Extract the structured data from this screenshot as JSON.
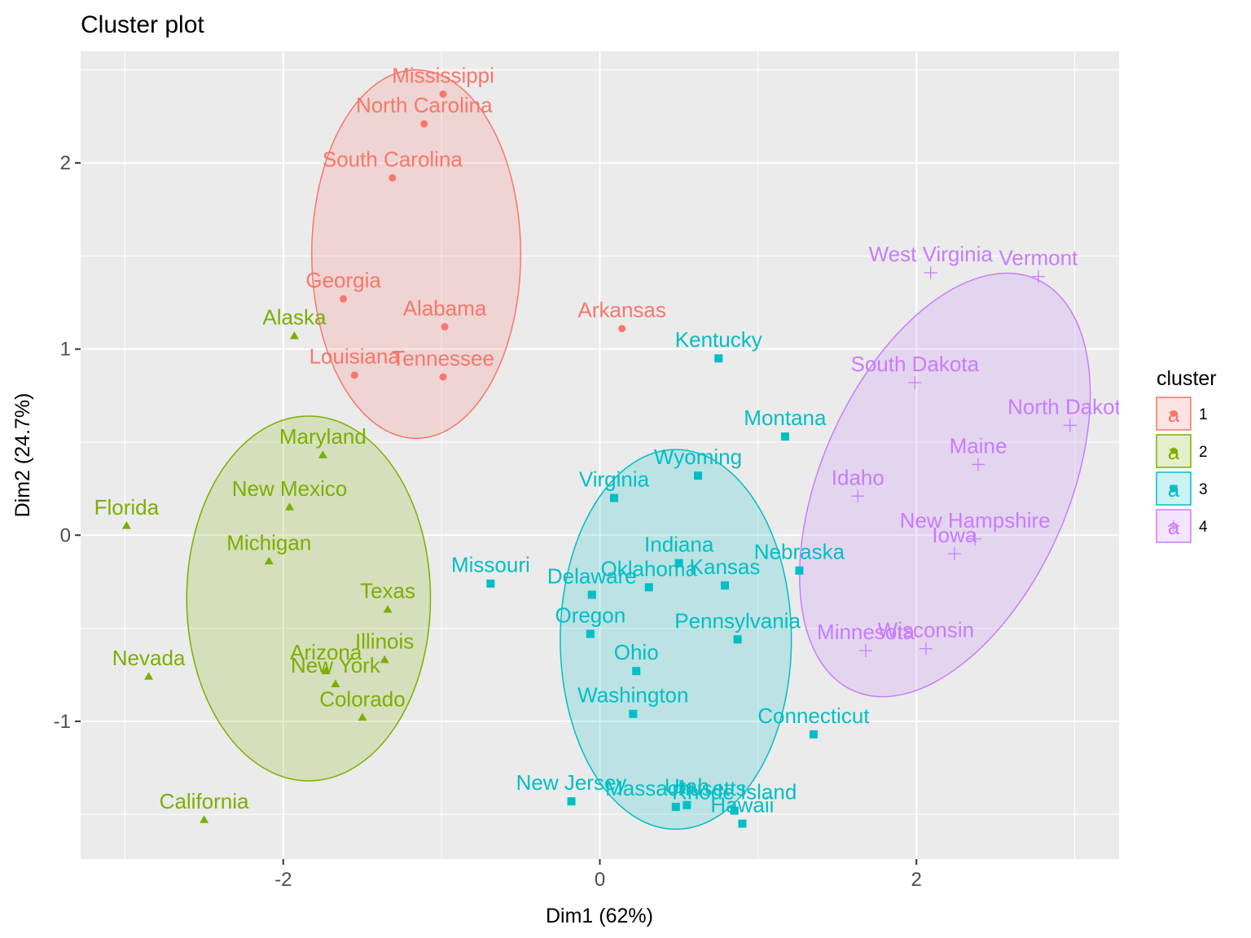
{
  "chart_data": {
    "type": "scatter",
    "title": "Cluster plot",
    "xlabel": "Dim1 (62%)",
    "ylabel": "Dim2 (24.7%)",
    "xlim": [
      -3.28,
      3.28
    ],
    "ylim": [
      -1.74,
      2.6
    ],
    "x_ticks": [
      -2,
      0,
      2
    ],
    "x_tick_labels": [
      "-2",
      "0",
      "2"
    ],
    "y_ticks": [
      -1,
      0,
      1,
      2
    ],
    "y_tick_labels": [
      "-1",
      "0",
      "1",
      "2"
    ],
    "grid": true,
    "legend": {
      "title": "cluster",
      "placement": "right",
      "glyph_text": "a",
      "entries": [
        {
          "label": "1",
          "color": "#F8766D",
          "shape": "circle"
        },
        {
          "label": "2",
          "color": "#7CAE00",
          "shape": "triangle"
        },
        {
          "label": "3",
          "color": "#00BFC4",
          "shape": "square"
        },
        {
          "label": "4",
          "color": "#C77CFF",
          "shape": "cross"
        }
      ]
    },
    "colors": {
      "1": "#F8766D",
      "2": "#7CAE00",
      "3": "#00BFC4",
      "4": "#C77CFF",
      "panel_background": "#EBEBEB",
      "grid": "#FFFFFF"
    },
    "ellipses": [
      {
        "cluster": "1",
        "center": [
          -1.16,
          1.51
        ],
        "semi_axis_x": 0.66,
        "semi_axis_y": 0.99
      },
      {
        "cluster": "2",
        "center": [
          -1.84,
          -0.34
        ],
        "semi_axis_x": 0.77,
        "semi_axis_y": 0.98
      },
      {
        "cluster": "3",
        "center": [
          0.48,
          -0.56
        ],
        "semi_axis_x": 0.73,
        "semi_axis_y": 1.02
      },
      {
        "cluster": "4",
        "center": [
          2.18,
          0.27
        ],
        "semi_axis_x": 0.78,
        "semi_axis_y": 1.21,
        "rotation_deg": 24
      }
    ],
    "points": [
      {
        "name": "Mississippi",
        "cluster": "1",
        "x": -0.99,
        "y": 2.37
      },
      {
        "name": "North Carolina",
        "cluster": "1",
        "x": -1.11,
        "y": 2.21
      },
      {
        "name": "South Carolina",
        "cluster": "1",
        "x": -1.31,
        "y": 1.92
      },
      {
        "name": "Georgia",
        "cluster": "1",
        "x": -1.62,
        "y": 1.27
      },
      {
        "name": "Alabama",
        "cluster": "1",
        "x": -0.98,
        "y": 1.12
      },
      {
        "name": "Arkansas",
        "cluster": "1",
        "x": 0.14,
        "y": 1.11
      },
      {
        "name": "Louisiana",
        "cluster": "1",
        "x": -1.55,
        "y": 0.86
      },
      {
        "name": "Tennessee",
        "cluster": "1",
        "x": -0.99,
        "y": 0.85
      },
      {
        "name": "Alaska",
        "cluster": "2",
        "x": -1.93,
        "y": 1.07
      },
      {
        "name": "Maryland",
        "cluster": "2",
        "x": -1.75,
        "y": 0.43
      },
      {
        "name": "New Mexico",
        "cluster": "2",
        "x": -1.96,
        "y": 0.15
      },
      {
        "name": "Florida",
        "cluster": "2",
        "x": -2.99,
        "y": 0.05
      },
      {
        "name": "Michigan",
        "cluster": "2",
        "x": -2.09,
        "y": -0.14
      },
      {
        "name": "Texas",
        "cluster": "2",
        "x": -1.34,
        "y": -0.4
      },
      {
        "name": "Illinois",
        "cluster": "2",
        "x": -1.36,
        "y": -0.67
      },
      {
        "name": "Arizona",
        "cluster": "2",
        "x": -1.73,
        "y": -0.73
      },
      {
        "name": "New York",
        "cluster": "2",
        "x": -1.67,
        "y": -0.8
      },
      {
        "name": "Nevada",
        "cluster": "2",
        "x": -2.85,
        "y": -0.76
      },
      {
        "name": "Colorado",
        "cluster": "2",
        "x": -1.5,
        "y": -0.98
      },
      {
        "name": "California",
        "cluster": "2",
        "x": -2.5,
        "y": -1.53
      },
      {
        "name": "Kentucky",
        "cluster": "3",
        "x": 0.75,
        "y": 0.95
      },
      {
        "name": "Montana",
        "cluster": "3",
        "x": 1.17,
        "y": 0.53
      },
      {
        "name": "Wyoming",
        "cluster": "3",
        "x": 0.62,
        "y": 0.32
      },
      {
        "name": "Virginia",
        "cluster": "3",
        "x": 0.09,
        "y": 0.2
      },
      {
        "name": "Indiana",
        "cluster": "3",
        "x": 0.5,
        "y": -0.15
      },
      {
        "name": "Missouri",
        "cluster": "3",
        "x": -0.69,
        "y": -0.26
      },
      {
        "name": "Nebraska",
        "cluster": "3",
        "x": 1.26,
        "y": -0.19
      },
      {
        "name": "Kansas",
        "cluster": "3",
        "x": 0.79,
        "y": -0.27
      },
      {
        "name": "Oklahoma",
        "cluster": "3",
        "x": 0.31,
        "y": -0.28
      },
      {
        "name": "Delaware",
        "cluster": "3",
        "x": -0.05,
        "y": -0.32
      },
      {
        "name": "Oregon",
        "cluster": "3",
        "x": -0.06,
        "y": -0.53
      },
      {
        "name": "Pennsylvania",
        "cluster": "3",
        "x": 0.87,
        "y": -0.56
      },
      {
        "name": "Ohio",
        "cluster": "3",
        "x": 0.23,
        "y": -0.73
      },
      {
        "name": "Washington",
        "cluster": "3",
        "x": 0.21,
        "y": -0.96
      },
      {
        "name": "Connecticut",
        "cluster": "3",
        "x": 1.35,
        "y": -1.07
      },
      {
        "name": "New Jersey",
        "cluster": "3",
        "x": -0.18,
        "y": -1.43
      },
      {
        "name": "Massachusetts",
        "cluster": "3",
        "x": 0.48,
        "y": -1.46
      },
      {
        "name": "Utah",
        "cluster": "3",
        "x": 0.55,
        "y": -1.45
      },
      {
        "name": "Rhode Island",
        "cluster": "3",
        "x": 0.85,
        "y": -1.48
      },
      {
        "name": "Hawaii",
        "cluster": "3",
        "x": 0.9,
        "y": -1.55
      },
      {
        "name": "West Virginia",
        "cluster": "4",
        "x": 2.09,
        "y": 1.41
      },
      {
        "name": "Vermont",
        "cluster": "4",
        "x": 2.77,
        "y": 1.39
      },
      {
        "name": "South Dakota",
        "cluster": "4",
        "x": 1.99,
        "y": 0.82
      },
      {
        "name": "North Dakota",
        "cluster": "4",
        "x": 2.97,
        "y": 0.59
      },
      {
        "name": "Maine",
        "cluster": "4",
        "x": 2.39,
        "y": 0.38
      },
      {
        "name": "Idaho",
        "cluster": "4",
        "x": 1.63,
        "y": 0.21
      },
      {
        "name": "New Hampshire",
        "cluster": "4",
        "x": 2.37,
        "y": -0.02
      },
      {
        "name": "Iowa",
        "cluster": "4",
        "x": 2.24,
        "y": -0.1
      },
      {
        "name": "Minnesota",
        "cluster": "4",
        "x": 1.68,
        "y": -0.62
      },
      {
        "name": "Wisconsin",
        "cluster": "4",
        "x": 2.06,
        "y": -0.61
      }
    ]
  }
}
